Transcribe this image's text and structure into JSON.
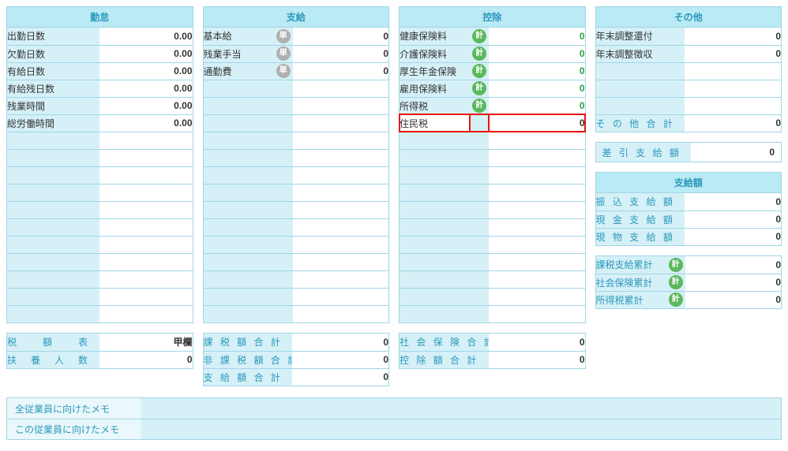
{
  "colors": {
    "border": "#a0d6e6",
    "header_bg": "#baeaf5",
    "header_fg": "#2a99bc",
    "label_bg": "#d6f0f7",
    "value_bg": "#ffffff",
    "highlight_border": "#e11",
    "badge_unit_bg": "#b0b0b0",
    "badge_calc_bg": "#5cb85c",
    "green_text": "#2f9e44"
  },
  "badges": {
    "unit": "単",
    "calc": "計"
  },
  "attendance": {
    "title": "勤怠",
    "rows": [
      {
        "label": "出勤日数",
        "value": "0.00"
      },
      {
        "label": "欠勤日数",
        "value": "0.00"
      },
      {
        "label": "有給日数",
        "value": "0.00"
      },
      {
        "label": "有給残日数",
        "value": "0.00"
      },
      {
        "label": "残業時間",
        "value": "0.00"
      },
      {
        "label": "総労働時間",
        "value": "0.00"
      }
    ],
    "blank_rows": 11,
    "footer": [
      {
        "label": "税　　額　　表",
        "value": "甲欄"
      },
      {
        "label": "扶　養　人　数",
        "value": "0"
      }
    ]
  },
  "payment": {
    "title": "支給",
    "rows": [
      {
        "label": "基本給",
        "badge": "unit",
        "value": "0"
      },
      {
        "label": "残業手当",
        "badge": "unit",
        "value": "0"
      },
      {
        "label": "通勤費",
        "badge": "unit",
        "value": "0"
      }
    ],
    "blank_rows": 14,
    "sums": [
      {
        "label": "課 税 額 合 計",
        "value": "0"
      },
      {
        "label": "非 課 税 額 合 計",
        "value": "0"
      },
      {
        "label": "支 給 額 合 計",
        "value": "0"
      }
    ]
  },
  "deduction": {
    "title": "控除",
    "rows": [
      {
        "label": "健康保険料",
        "badge": "calc",
        "value": "0",
        "green": true
      },
      {
        "label": "介護保険料",
        "badge": "calc",
        "value": "0",
        "green": true
      },
      {
        "label": "厚生年金保険",
        "badge": "calc",
        "value": "0",
        "green": true
      },
      {
        "label": "雇用保険料",
        "badge": "calc",
        "value": "0",
        "green": true
      },
      {
        "label": "所得税",
        "badge": "calc",
        "value": "0",
        "green": true
      },
      {
        "label": "住民税",
        "badge": null,
        "value": "0",
        "highlight": true
      }
    ],
    "blank_rows": 11,
    "sums": [
      {
        "label": "社 会 保 険 合 計",
        "value": "0"
      },
      {
        "label": "控 除 額 合 計",
        "value": "0"
      }
    ]
  },
  "other": {
    "title": "その他",
    "rows": [
      {
        "label": "年末調整還付",
        "value": "0"
      },
      {
        "label": "年末調整徴収",
        "value": "0"
      }
    ],
    "blank_rows": 3,
    "sum": {
      "label": "そ の 他 合 計",
      "value": "0"
    }
  },
  "net": {
    "label": "差 引 支 給 額",
    "value": "0"
  },
  "pay_amounts": {
    "title": "支給額",
    "rows": [
      {
        "label": "振 込 支 給 額",
        "value": "0"
      },
      {
        "label": "現 金 支 給 額",
        "value": "0"
      },
      {
        "label": "現 物 支 給 額",
        "value": "0"
      }
    ]
  },
  "cumulative": {
    "rows": [
      {
        "label": "課税支給累計",
        "badge": "calc",
        "value": "0"
      },
      {
        "label": "社会保険累計",
        "badge": "calc",
        "value": "0"
      },
      {
        "label": "所得税累計",
        "badge": "calc",
        "value": "0"
      }
    ]
  },
  "memos": [
    {
      "label": "全従業員に向けたメモ",
      "value": ""
    },
    {
      "label": "この従業員に向けたメモ",
      "value": ""
    }
  ]
}
